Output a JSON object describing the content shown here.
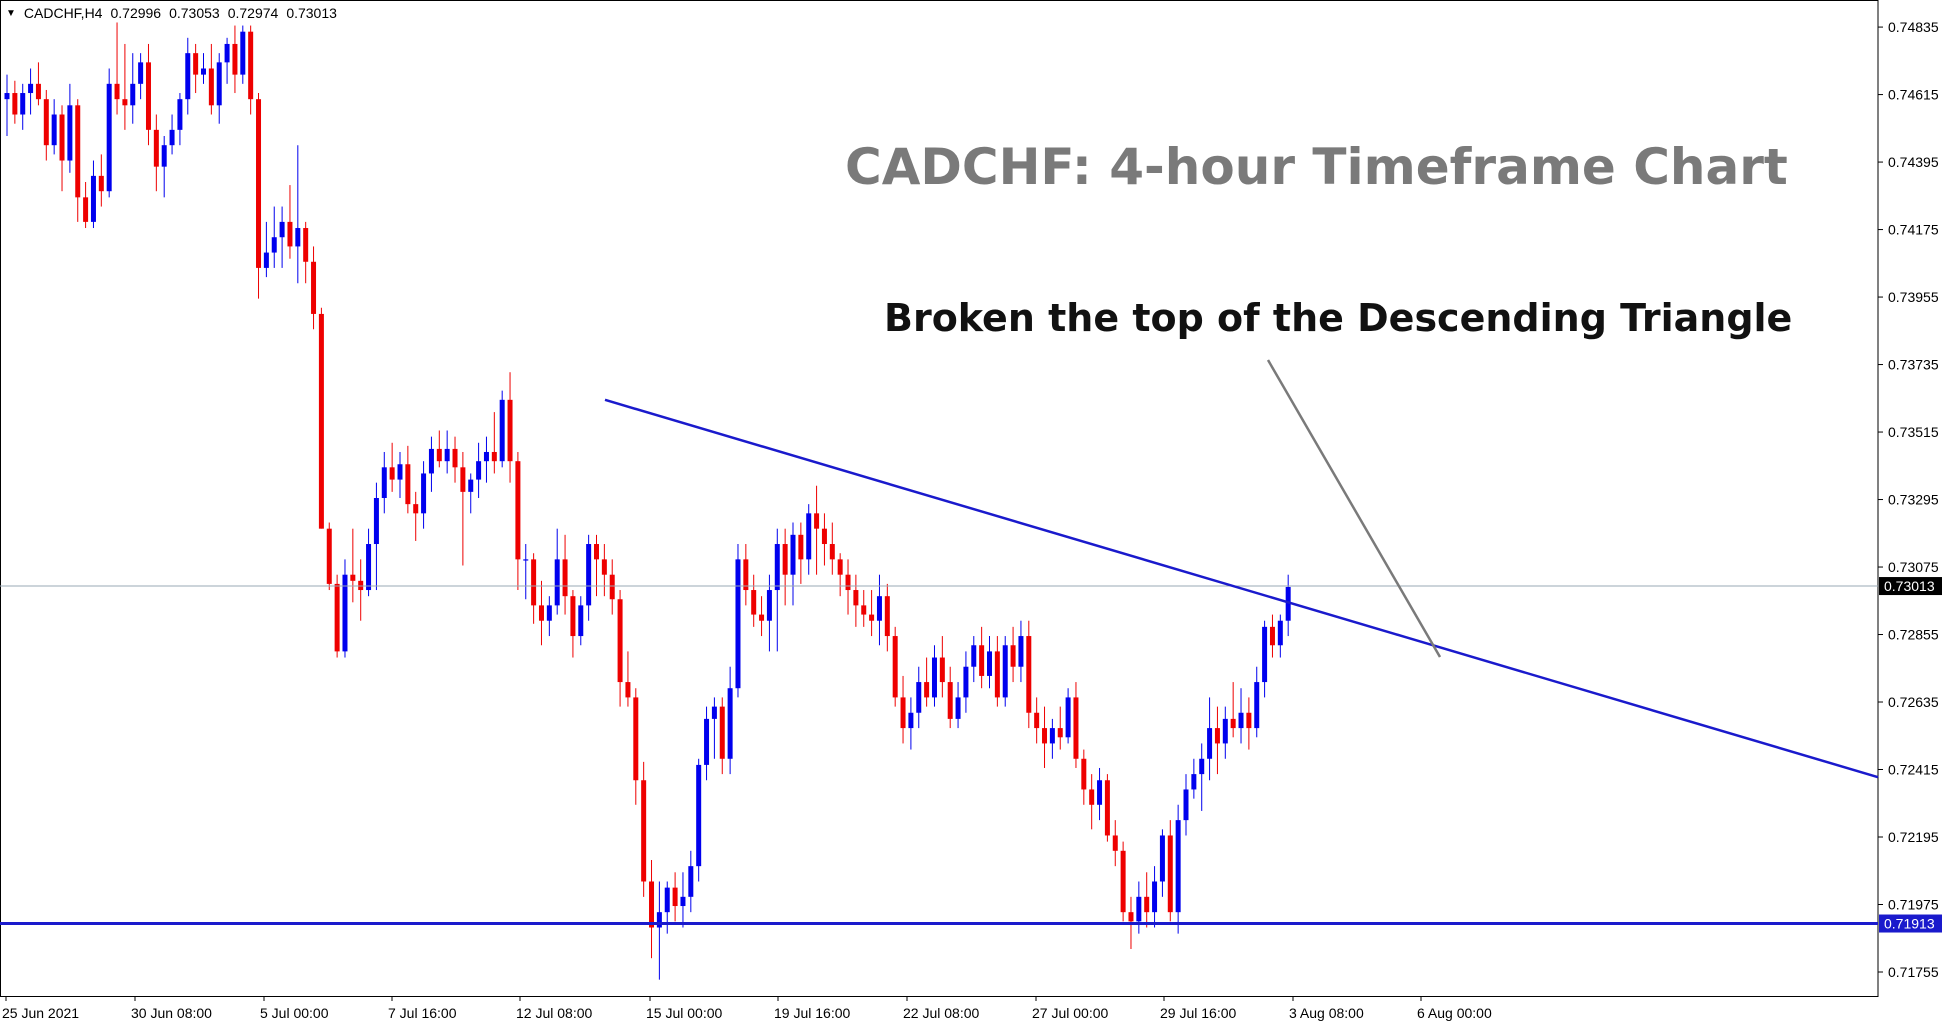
{
  "header": {
    "menu_icon": "triangle-down-icon",
    "symbol": "CADCHF,H4",
    "open": "0.72996",
    "high": "0.73053",
    "low": "0.72974",
    "close": "0.73013"
  },
  "annotation": {
    "text": "Broken the top of the Descending Triangle"
  },
  "colors": {
    "bull": "#0000ee",
    "bear": "#ee0000",
    "trendline": "#1a1acc",
    "current_line": "#9aa8b4",
    "arrow": "#7a7a7a",
    "title": "#7a7a7a"
  },
  "chart_data": {
    "type": "candlestick",
    "title": "CADCHF: 4-hour Timeframe Chart",
    "symbol": "CADCHF",
    "timeframe": "H4",
    "ylim": [
      0.7168,
      0.7492
    ],
    "y_ticks": [
      "0.74835",
      "0.74615",
      "0.74395",
      "0.74175",
      "0.73955",
      "0.73735",
      "0.73515",
      "0.73295",
      "0.73075",
      "0.72855",
      "0.72635",
      "0.72415",
      "0.72195",
      "0.71975",
      "0.71755"
    ],
    "x_ticks": [
      "25 Jun 2021",
      "30 Jun 08:00",
      "5 Jul 00:00",
      "7 Jul 16:00",
      "12 Jul 08:00",
      "15 Jul 00:00",
      "19 Jul 16:00",
      "22 Jul 08:00",
      "27 Jul 00:00",
      "29 Jul 16:00",
      "3 Aug 08:00",
      "6 Aug 00:00"
    ],
    "current_price": "0.73013",
    "support_level": "0.71913",
    "trendline": {
      "start": [
        "12 Jul 08:00+",
        0.7362
      ],
      "end": [
        "right edge",
        0.7239
      ]
    },
    "candles": [
      [
        0.746,
        0.7468,
        0.7448,
        0.7462
      ],
      [
        0.7462,
        0.7466,
        0.7452,
        0.7455
      ],
      [
        0.7455,
        0.7465,
        0.745,
        0.7462
      ],
      [
        0.7462,
        0.747,
        0.7455,
        0.7465
      ],
      [
        0.7465,
        0.7472,
        0.7458,
        0.746
      ],
      [
        0.746,
        0.7463,
        0.744,
        0.7445
      ],
      [
        0.7445,
        0.746,
        0.7442,
        0.7455
      ],
      [
        0.7455,
        0.7458,
        0.743,
        0.744
      ],
      [
        0.744,
        0.7465,
        0.7436,
        0.7458
      ],
      [
        0.7458,
        0.746,
        0.742,
        0.7428
      ],
      [
        0.7428,
        0.7433,
        0.7418,
        0.742
      ],
      [
        0.742,
        0.744,
        0.7418,
        0.7435
      ],
      [
        0.7435,
        0.7442,
        0.7425,
        0.743
      ],
      [
        0.743,
        0.747,
        0.7428,
        0.7465
      ],
      [
        0.7465,
        0.7485,
        0.7455,
        0.746
      ],
      [
        0.746,
        0.7478,
        0.745,
        0.7458
      ],
      [
        0.7458,
        0.7475,
        0.7452,
        0.7465
      ],
      [
        0.7465,
        0.7475,
        0.746,
        0.7472
      ],
      [
        0.7472,
        0.7478,
        0.7445,
        0.745
      ],
      [
        0.745,
        0.7455,
        0.743,
        0.7438
      ],
      [
        0.7438,
        0.7448,
        0.7428,
        0.7445
      ],
      [
        0.7445,
        0.7455,
        0.7442,
        0.745
      ],
      [
        0.745,
        0.7462,
        0.7445,
        0.746
      ],
      [
        0.746,
        0.748,
        0.7455,
        0.7475
      ],
      [
        0.7475,
        0.7478,
        0.7462,
        0.7468
      ],
      [
        0.7468,
        0.7475,
        0.7465,
        0.747
      ],
      [
        0.747,
        0.7478,
        0.7455,
        0.7458
      ],
      [
        0.7458,
        0.7475,
        0.7452,
        0.7472
      ],
      [
        0.7472,
        0.748,
        0.7465,
        0.7478
      ],
      [
        0.7478,
        0.7484,
        0.7462,
        0.7468
      ],
      [
        0.7468,
        0.7484,
        0.7465,
        0.7482
      ],
      [
        0.7482,
        0.7484,
        0.7455,
        0.746
      ],
      [
        0.746,
        0.7462,
        0.7395,
        0.7405
      ],
      [
        0.7405,
        0.742,
        0.7402,
        0.741
      ],
      [
        0.741,
        0.7425,
        0.7405,
        0.7415
      ],
      [
        0.7415,
        0.7425,
        0.7405,
        0.742
      ],
      [
        0.742,
        0.7432,
        0.7408,
        0.7412
      ],
      [
        0.7412,
        0.7445,
        0.74,
        0.7418
      ],
      [
        0.7418,
        0.742,
        0.74,
        0.7407
      ],
      [
        0.7407,
        0.7412,
        0.7385,
        0.739
      ],
      [
        0.739,
        0.7392,
        0.732,
        0.732
      ],
      [
        0.732,
        0.7322,
        0.73,
        0.7302
      ],
      [
        0.7302,
        0.7305,
        0.7278,
        0.728
      ],
      [
        0.728,
        0.731,
        0.7278,
        0.7305
      ],
      [
        0.7305,
        0.732,
        0.7296,
        0.7303
      ],
      [
        0.7303,
        0.731,
        0.729,
        0.73
      ],
      [
        0.73,
        0.732,
        0.7298,
        0.7315
      ],
      [
        0.7315,
        0.7335,
        0.73,
        0.733
      ],
      [
        0.733,
        0.7345,
        0.7325,
        0.734
      ],
      [
        0.734,
        0.7348,
        0.7332,
        0.7336
      ],
      [
        0.7336,
        0.7345,
        0.733,
        0.7341
      ],
      [
        0.7341,
        0.7347,
        0.7325,
        0.7328
      ],
      [
        0.7328,
        0.7332,
        0.7316,
        0.7325
      ],
      [
        0.7325,
        0.7342,
        0.732,
        0.7338
      ],
      [
        0.7338,
        0.735,
        0.7332,
        0.7346
      ],
      [
        0.7346,
        0.7352,
        0.734,
        0.7342
      ],
      [
        0.7342,
        0.7352,
        0.7338,
        0.7346
      ],
      [
        0.7346,
        0.735,
        0.7335,
        0.734
      ],
      [
        0.734,
        0.7345,
        0.7308,
        0.7332
      ],
      [
        0.7332,
        0.7338,
        0.7325,
        0.7336
      ],
      [
        0.7336,
        0.7348,
        0.733,
        0.7342
      ],
      [
        0.7342,
        0.735,
        0.7335,
        0.7345
      ],
      [
        0.7345,
        0.7358,
        0.7338,
        0.7342
      ],
      [
        0.7342,
        0.7365,
        0.734,
        0.7362
      ],
      [
        0.7362,
        0.7371,
        0.7335,
        0.7342
      ],
      [
        0.7342,
        0.7345,
        0.73,
        0.731
      ],
      [
        0.731,
        0.7315,
        0.7297,
        0.731
      ],
      [
        0.731,
        0.7312,
        0.7289,
        0.7295
      ],
      [
        0.7295,
        0.7303,
        0.7282,
        0.729
      ],
      [
        0.729,
        0.7298,
        0.7285,
        0.7295
      ],
      [
        0.7295,
        0.732,
        0.7292,
        0.731
      ],
      [
        0.731,
        0.7318,
        0.7292,
        0.7298
      ],
      [
        0.7298,
        0.73,
        0.7278,
        0.7285
      ],
      [
        0.7285,
        0.7298,
        0.7282,
        0.7295
      ],
      [
        0.7295,
        0.7318,
        0.729,
        0.7315
      ],
      [
        0.7315,
        0.7318,
        0.7298,
        0.731
      ],
      [
        0.731,
        0.7315,
        0.7298,
        0.7305
      ],
      [
        0.7305,
        0.731,
        0.7292,
        0.7297
      ],
      [
        0.7297,
        0.73,
        0.7262,
        0.727
      ],
      [
        0.727,
        0.728,
        0.7262,
        0.7265
      ],
      [
        0.7265,
        0.7268,
        0.723,
        0.7238
      ],
      [
        0.7238,
        0.7244,
        0.72,
        0.7205
      ],
      [
        0.7205,
        0.7212,
        0.718,
        0.719
      ],
      [
        0.719,
        0.7205,
        0.7173,
        0.7195
      ],
      [
        0.7195,
        0.7205,
        0.7188,
        0.7203
      ],
      [
        0.7203,
        0.7208,
        0.7192,
        0.7197
      ],
      [
        0.7197,
        0.7208,
        0.719,
        0.72
      ],
      [
        0.72,
        0.7215,
        0.7195,
        0.721
      ],
      [
        0.721,
        0.7245,
        0.7205,
        0.7243
      ],
      [
        0.7243,
        0.7262,
        0.7238,
        0.7258
      ],
      [
        0.7258,
        0.7265,
        0.7245,
        0.7262
      ],
      [
        0.7262,
        0.7265,
        0.724,
        0.7245
      ],
      [
        0.7245,
        0.7275,
        0.724,
        0.7268
      ],
      [
        0.7268,
        0.7315,
        0.7265,
        0.731
      ],
      [
        0.731,
        0.7315,
        0.7295,
        0.73
      ],
      [
        0.73,
        0.7305,
        0.7288,
        0.7292
      ],
      [
        0.7292,
        0.7298,
        0.7285,
        0.729
      ],
      [
        0.729,
        0.7305,
        0.728,
        0.73
      ],
      [
        0.73,
        0.732,
        0.728,
        0.7315
      ],
      [
        0.7315,
        0.732,
        0.7295,
        0.7305
      ],
      [
        0.7305,
        0.7322,
        0.7295,
        0.7318
      ],
      [
        0.7318,
        0.7322,
        0.7302,
        0.731
      ],
      [
        0.731,
        0.7328,
        0.7305,
        0.7325
      ],
      [
        0.7325,
        0.7334,
        0.7305,
        0.732
      ],
      [
        0.732,
        0.7325,
        0.7308,
        0.7315
      ],
      [
        0.7315,
        0.7322,
        0.7305,
        0.731
      ],
      [
        0.731,
        0.7312,
        0.7298,
        0.7305
      ],
      [
        0.7305,
        0.731,
        0.7292,
        0.73
      ],
      [
        0.73,
        0.7305,
        0.7288,
        0.7295
      ],
      [
        0.7295,
        0.73,
        0.7288,
        0.7292
      ],
      [
        0.7292,
        0.73,
        0.7285,
        0.729
      ],
      [
        0.729,
        0.7305,
        0.7282,
        0.7298
      ],
      [
        0.7298,
        0.7302,
        0.728,
        0.7285
      ],
      [
        0.7285,
        0.7288,
        0.7262,
        0.7265
      ],
      [
        0.7265,
        0.7272,
        0.725,
        0.7255
      ],
      [
        0.7255,
        0.7265,
        0.7248,
        0.726
      ],
      [
        0.726,
        0.7275,
        0.7255,
        0.727
      ],
      [
        0.727,
        0.7278,
        0.7262,
        0.7265
      ],
      [
        0.7265,
        0.7282,
        0.7262,
        0.7278
      ],
      [
        0.7278,
        0.7285,
        0.7265,
        0.727
      ],
      [
        0.727,
        0.7275,
        0.7255,
        0.7258
      ],
      [
        0.7258,
        0.727,
        0.7255,
        0.7265
      ],
      [
        0.7265,
        0.728,
        0.726,
        0.7275
      ],
      [
        0.7275,
        0.7285,
        0.727,
        0.7282
      ],
      [
        0.7282,
        0.7288,
        0.7268,
        0.7272
      ],
      [
        0.7272,
        0.7285,
        0.7268,
        0.728
      ],
      [
        0.728,
        0.7285,
        0.7262,
        0.7265
      ],
      [
        0.7265,
        0.7285,
        0.7262,
        0.7282
      ],
      [
        0.7282,
        0.7288,
        0.727,
        0.7275
      ],
      [
        0.7275,
        0.729,
        0.727,
        0.7285
      ],
      [
        0.7285,
        0.729,
        0.7255,
        0.726
      ],
      [
        0.726,
        0.7265,
        0.725,
        0.7255
      ],
      [
        0.7255,
        0.7262,
        0.7242,
        0.725
      ],
      [
        0.725,
        0.7258,
        0.7245,
        0.7255
      ],
      [
        0.7255,
        0.7262,
        0.7248,
        0.7252
      ],
      [
        0.7252,
        0.7268,
        0.725,
        0.7265
      ],
      [
        0.7265,
        0.727,
        0.7242,
        0.7245
      ],
      [
        0.7245,
        0.7248,
        0.723,
        0.7235
      ],
      [
        0.7235,
        0.724,
        0.7222,
        0.723
      ],
      [
        0.723,
        0.7242,
        0.7225,
        0.7238
      ],
      [
        0.7238,
        0.724,
        0.7218,
        0.722
      ],
      [
        0.722,
        0.7225,
        0.721,
        0.7215
      ],
      [
        0.7215,
        0.7218,
        0.7192,
        0.7195
      ],
      [
        0.7195,
        0.72,
        0.7183,
        0.7192
      ],
      [
        0.7192,
        0.7205,
        0.7188,
        0.72
      ],
      [
        0.72,
        0.7208,
        0.719,
        0.7195
      ],
      [
        0.7195,
        0.721,
        0.719,
        0.7205
      ],
      [
        0.7205,
        0.7222,
        0.72,
        0.722
      ],
      [
        0.722,
        0.7225,
        0.7192,
        0.7195
      ],
      [
        0.7195,
        0.723,
        0.7188,
        0.7225
      ],
      [
        0.7225,
        0.724,
        0.722,
        0.7235
      ],
      [
        0.7235,
        0.7245,
        0.7232,
        0.724
      ],
      [
        0.724,
        0.725,
        0.7228,
        0.7245
      ],
      [
        0.7245,
        0.7265,
        0.7238,
        0.7255
      ],
      [
        0.7255,
        0.7262,
        0.724,
        0.725
      ],
      [
        0.725,
        0.7262,
        0.7245,
        0.7258
      ],
      [
        0.7258,
        0.727,
        0.7252,
        0.7255
      ],
      [
        0.7255,
        0.7268,
        0.725,
        0.726
      ],
      [
        0.726,
        0.7265,
        0.7248,
        0.7255
      ],
      [
        0.7255,
        0.7275,
        0.7252,
        0.727
      ],
      [
        0.727,
        0.729,
        0.7265,
        0.7288
      ],
      [
        0.7288,
        0.7292,
        0.7278,
        0.7282
      ],
      [
        0.7282,
        0.7292,
        0.7278,
        0.729
      ],
      [
        0.729,
        0.7305,
        0.7285,
        0.7301
      ]
    ]
  }
}
